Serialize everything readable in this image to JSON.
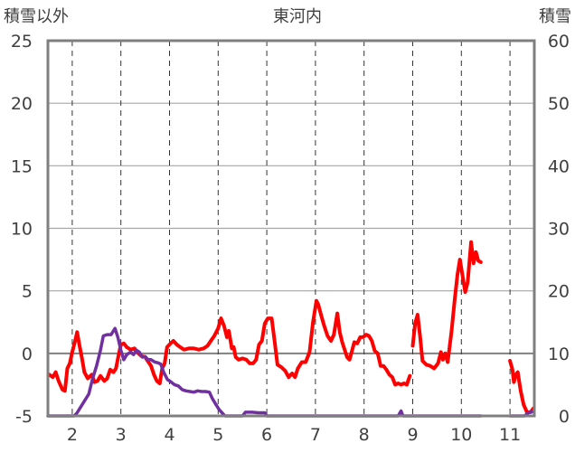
{
  "chart_data": {
    "type": "line",
    "title": "東河内",
    "ylabel_left": "積雪以外",
    "ylabel_right": "積雪",
    "ylim_left": [
      -5,
      25
    ],
    "ylim_right": [
      0,
      60
    ],
    "xlim": [
      1.5,
      11.5
    ],
    "yticks_left": [
      -5,
      0,
      5,
      10,
      15,
      20,
      25
    ],
    "yticks_right": [
      0,
      10,
      20,
      30,
      40,
      50,
      60
    ],
    "xticks": [
      2,
      3,
      4,
      5,
      6,
      7,
      8,
      9,
      10,
      11
    ],
    "grid": true,
    "series": [
      {
        "axis": "left",
        "color": "#ff0000",
        "segments": [
          [
            [
              1.53,
              -1.7
            ],
            [
              1.6,
              -1.9
            ],
            [
              1.66,
              -1.5
            ],
            [
              1.72,
              -2.2
            ],
            [
              1.8,
              -2.9
            ],
            [
              1.85,
              -3.0
            ],
            [
              1.9,
              -1.2
            ],
            [
              1.95,
              -0.8
            ],
            [
              2.0,
              0.1
            ],
            [
              2.06,
              1.0
            ],
            [
              2.1,
              1.7
            ],
            [
              2.15,
              0.6
            ],
            [
              2.2,
              -0.4
            ],
            [
              2.25,
              -1.5
            ],
            [
              2.32,
              -2.0
            ],
            [
              2.4,
              -1.7
            ],
            [
              2.46,
              -2.3
            ],
            [
              2.52,
              -2.2
            ],
            [
              2.58,
              -1.8
            ],
            [
              2.66,
              -2.2
            ],
            [
              2.72,
              -2.0
            ],
            [
              2.78,
              -1.3
            ],
            [
              2.85,
              -1.5
            ],
            [
              2.9,
              -1.2
            ],
            [
              2.95,
              -0.2
            ],
            [
              3.0,
              0.7
            ],
            [
              3.06,
              0.8
            ],
            [
              3.12,
              0.5
            ],
            [
              3.2,
              0.3
            ],
            [
              3.28,
              0.4
            ],
            [
              3.36,
              0.0
            ],
            [
              3.42,
              -0.2
            ],
            [
              3.5,
              -0.3
            ],
            [
              3.55,
              -0.6
            ],
            [
              3.62,
              -1.0
            ],
            [
              3.68,
              -1.7
            ],
            [
              3.74,
              -2.2
            ],
            [
              3.8,
              -2.4
            ],
            [
              3.85,
              -1.2
            ],
            [
              3.9,
              -0.8
            ],
            [
              3.95,
              0.5
            ],
            [
              4.02,
              0.8
            ],
            [
              4.08,
              1.0
            ],
            [
              4.15,
              0.7
            ],
            [
              4.22,
              0.5
            ],
            [
              4.3,
              0.3
            ],
            [
              4.4,
              0.4
            ],
            [
              4.5,
              0.4
            ],
            [
              4.6,
              0.3
            ],
            [
              4.7,
              0.4
            ],
            [
              4.78,
              0.6
            ],
            [
              4.85,
              1.0
            ],
            [
              4.92,
              1.4
            ],
            [
              5.0,
              2.0
            ],
            [
              5.06,
              2.8
            ],
            [
              5.12,
              2.2
            ],
            [
              5.18,
              1.3
            ],
            [
              5.22,
              1.8
            ],
            [
              5.28,
              0.4
            ],
            [
              5.32,
              0.5
            ],
            [
              5.36,
              -0.3
            ],
            [
              5.42,
              -0.5
            ],
            [
              5.5,
              -0.4
            ],
            [
              5.58,
              -0.5
            ],
            [
              5.65,
              -0.8
            ],
            [
              5.72,
              -0.8
            ],
            [
              5.78,
              -0.5
            ],
            [
              5.84,
              0.7
            ],
            [
              5.9,
              1.0
            ],
            [
              5.96,
              2.4
            ],
            [
              6.02,
              2.8
            ],
            [
              6.1,
              2.8
            ],
            [
              6.16,
              1.0
            ],
            [
              6.22,
              -0.9
            ],
            [
              6.3,
              -1.1
            ],
            [
              6.38,
              -1.4
            ],
            [
              6.45,
              -1.9
            ],
            [
              6.52,
              -1.6
            ],
            [
              6.58,
              -1.9
            ],
            [
              6.64,
              -1.2
            ],
            [
              6.72,
              -0.7
            ],
            [
              6.8,
              -0.7
            ],
            [
              6.88,
              0.1
            ],
            [
              6.95,
              2.5
            ],
            [
              7.02,
              4.2
            ],
            [
              7.06,
              3.9
            ],
            [
              7.12,
              3.0
            ],
            [
              7.18,
              2.2
            ],
            [
              7.25,
              1.4
            ],
            [
              7.32,
              1.0
            ],
            [
              7.38,
              1.5
            ],
            [
              7.45,
              3.2
            ],
            [
              7.5,
              1.7
            ],
            [
              7.55,
              0.9
            ],
            [
              7.6,
              0.3
            ],
            [
              7.65,
              -0.3
            ],
            [
              7.7,
              -0.5
            ],
            [
              7.75,
              0.2
            ],
            [
              7.8,
              0.9
            ],
            [
              7.86,
              0.8
            ],
            [
              7.92,
              1.3
            ],
            [
              7.98,
              1.3
            ],
            [
              8.04,
              1.5
            ],
            [
              8.1,
              1.4
            ],
            [
              8.16,
              1.0
            ],
            [
              8.22,
              0.2
            ],
            [
              8.28,
              0.0
            ],
            [
              8.34,
              -1.0
            ],
            [
              8.4,
              -1.0
            ],
            [
              8.46,
              -1.3
            ],
            [
              8.52,
              -1.7
            ],
            [
              8.58,
              -1.9
            ],
            [
              8.64,
              -2.5
            ],
            [
              8.7,
              -2.4
            ],
            [
              8.76,
              -2.5
            ],
            [
              8.82,
              -2.4
            ],
            [
              8.88,
              -2.5
            ],
            [
              8.94,
              -1.8
            ]
          ],
          [
            [
              9.0,
              0.6
            ],
            [
              9.05,
              2.4
            ],
            [
              9.1,
              3.1
            ],
            [
              9.15,
              1.4
            ],
            [
              9.2,
              -0.6
            ],
            [
              9.28,
              -0.9
            ],
            [
              9.36,
              -1.0
            ],
            [
              9.44,
              -1.2
            ],
            [
              9.52,
              -0.8
            ],
            [
              9.58,
              0.1
            ],
            [
              9.62,
              -0.5
            ],
            [
              9.67,
              0.0
            ],
            [
              9.72,
              -0.7
            ],
            [
              9.8,
              1.8
            ],
            [
              9.86,
              4.2
            ],
            [
              9.92,
              6.3
            ],
            [
              9.97,
              7.5
            ],
            [
              10.02,
              6.3
            ],
            [
              10.08,
              4.9
            ],
            [
              10.13,
              5.7
            ],
            [
              10.2,
              8.9
            ],
            [
              10.25,
              7.2
            ],
            [
              10.3,
              8.1
            ],
            [
              10.35,
              7.4
            ],
            [
              10.4,
              7.3
            ]
          ],
          [
            [
              11.0,
              -0.6
            ],
            [
              11.05,
              -1.3
            ],
            [
              11.08,
              -2.3
            ],
            [
              11.12,
              -1.7
            ],
            [
              11.16,
              -1.5
            ],
            [
              11.22,
              -3.0
            ],
            [
              11.28,
              -4.1
            ],
            [
              11.35,
              -4.7
            ],
            [
              11.42,
              -4.7
            ],
            [
              11.48,
              -4.4
            ]
          ]
        ]
      },
      {
        "axis": "right",
        "color": "#7030a0",
        "segments": [
          [
            [
              1.5,
              0
            ],
            [
              2.04,
              0
            ],
            [
              2.1,
              0.5
            ],
            [
              2.18,
              1.5
            ],
            [
              2.26,
              2.5
            ],
            [
              2.34,
              3.5
            ],
            [
              2.42,
              6.0
            ],
            [
              2.5,
              8.0
            ],
            [
              2.58,
              10.5
            ],
            [
              2.64,
              12.8
            ],
            [
              2.72,
              13.0
            ],
            [
              2.8,
              13.0
            ],
            [
              2.88,
              14.0
            ],
            [
              2.94,
              12.5
            ],
            [
              3.0,
              10.5
            ],
            [
              3.06,
              9.0
            ],
            [
              3.12,
              9.8
            ],
            [
              3.2,
              10.2
            ],
            [
              3.26,
              9.8
            ],
            [
              3.32,
              10.5
            ],
            [
              3.38,
              10.2
            ],
            [
              3.44,
              9.4
            ],
            [
              3.5,
              9.5
            ],
            [
              3.56,
              9.0
            ],
            [
              3.62,
              9.0
            ],
            [
              3.7,
              8.6
            ],
            [
              3.76,
              8.5
            ],
            [
              3.82,
              8.3
            ],
            [
              3.88,
              7.0
            ],
            [
              3.96,
              5.8
            ],
            [
              4.02,
              5.5
            ],
            [
              4.1,
              5.0
            ],
            [
              4.18,
              4.8
            ],
            [
              4.26,
              4.2
            ],
            [
              4.34,
              4.0
            ],
            [
              4.42,
              3.9
            ],
            [
              4.5,
              3.8
            ],
            [
              4.58,
              4.0
            ],
            [
              4.66,
              3.9
            ],
            [
              4.74,
              3.9
            ],
            [
              4.82,
              3.8
            ],
            [
              4.88,
              2.8
            ],
            [
              4.94,
              2.0
            ],
            [
              5.02,
              1.0
            ],
            [
              5.08,
              0.5
            ],
            [
              5.14,
              0.0
            ],
            [
              5.5,
              0
            ],
            [
              5.56,
              0.6
            ],
            [
              5.7,
              0.6
            ],
            [
              5.82,
              0.5
            ],
            [
              5.96,
              0.5
            ],
            [
              6.0,
              0.0
            ],
            [
              8.7,
              0
            ],
            [
              8.76,
              0.8
            ],
            [
              8.8,
              0
            ],
            [
              10.4,
              0
            ]
          ],
          [
            [
              11.0,
              0
            ],
            [
              11.3,
              0
            ],
            [
              11.38,
              0.5
            ],
            [
              11.48,
              0.7
            ]
          ]
        ]
      }
    ]
  }
}
